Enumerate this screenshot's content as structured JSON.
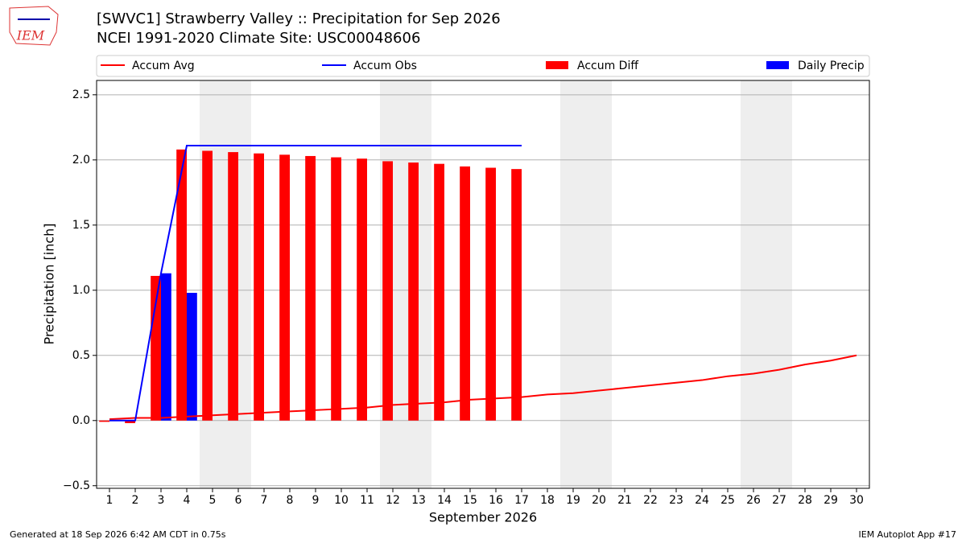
{
  "logo": "IEM",
  "footer": {
    "left": "Generated at 18 Sep 2026 6:42 AM CDT in 0.75s",
    "right": "IEM Autoplot App #17"
  },
  "chart_data": {
    "type": "combo",
    "title": "[SWVC1] Strawberry Valley :: Precipitation for Sep 2026",
    "subtitle": "NCEI 1991-2020 Climate Site: USC00048606",
    "xlabel": "September 2026",
    "ylabel": "Precipitation [inch]",
    "x": [
      1,
      2,
      3,
      4,
      5,
      6,
      7,
      8,
      9,
      10,
      11,
      12,
      13,
      14,
      15,
      16,
      17,
      18,
      19,
      20,
      21,
      22,
      23,
      24,
      25,
      26,
      27,
      28,
      29,
      30
    ],
    "xlim": [
      0.5,
      30.5
    ],
    "xticks": [
      1,
      2,
      3,
      4,
      5,
      6,
      7,
      8,
      9,
      10,
      11,
      12,
      13,
      14,
      15,
      16,
      17,
      18,
      19,
      20,
      21,
      22,
      23,
      24,
      25,
      26,
      27,
      28,
      29,
      30
    ],
    "ylim": [
      -0.52,
      2.61
    ],
    "yticks": [
      {
        "value": -0.5,
        "label": "−0.5"
      },
      {
        "value": 0,
        "label": "0.0"
      },
      {
        "value": 0.5,
        "label": "0.5"
      },
      {
        "value": 1,
        "label": "1.0"
      },
      {
        "value": 1.5,
        "label": "1.5"
      },
      {
        "value": 2,
        "label": "2.0"
      },
      {
        "value": 2.5,
        "label": "2.5"
      }
    ],
    "grid": true,
    "shaded_spans": [
      [
        4.5,
        6.5
      ],
      [
        11.5,
        13.5
      ],
      [
        18.5,
        20.5
      ],
      [
        25.5,
        27.5
      ]
    ],
    "shade_color": "#eeeeee",
    "series": [
      {
        "name": "Accum Avg",
        "kind": "line",
        "color": "#ff0000",
        "values": [
          0.01,
          0.02,
          0.02,
          0.03,
          0.04,
          0.05,
          0.06,
          0.07,
          0.08,
          0.09,
          0.1,
          0.12,
          0.13,
          0.14,
          0.16,
          0.17,
          0.18,
          0.2,
          0.21,
          0.23,
          0.25,
          0.27,
          0.29,
          0.31,
          0.34,
          0.36,
          0.39,
          0.43,
          0.46,
          0.5
        ]
      },
      {
        "name": "Accum Obs",
        "kind": "line",
        "color": "#0000ff",
        "values": [
          0,
          0,
          1.13,
          2.11,
          2.11,
          2.11,
          2.11,
          2.11,
          2.11,
          2.11,
          2.11,
          2.11,
          2.11,
          2.11,
          2.11,
          2.11,
          2.11,
          null,
          null,
          null,
          null,
          null,
          null,
          null,
          null,
          null,
          null,
          null,
          null,
          null
        ]
      },
      {
        "name": "Accum Diff",
        "kind": "bar",
        "color": "#ff0000",
        "values": [
          -0.01,
          -0.02,
          1.11,
          2.08,
          2.07,
          2.06,
          2.05,
          2.04,
          2.03,
          2.02,
          2.01,
          1.99,
          1.98,
          1.97,
          1.95,
          1.94,
          1.93,
          null,
          null,
          null,
          null,
          null,
          null,
          null,
          null,
          null,
          null,
          null,
          null,
          null
        ]
      },
      {
        "name": "Daily Precip",
        "kind": "bar",
        "color": "#0000ff",
        "values": [
          0,
          0,
          1.13,
          0.98,
          0,
          0,
          0,
          0,
          0,
          0,
          0,
          0,
          0,
          0,
          0,
          0,
          0,
          null,
          null,
          null,
          null,
          null,
          null,
          null,
          null,
          null,
          null,
          null,
          null,
          null
        ]
      }
    ]
  }
}
